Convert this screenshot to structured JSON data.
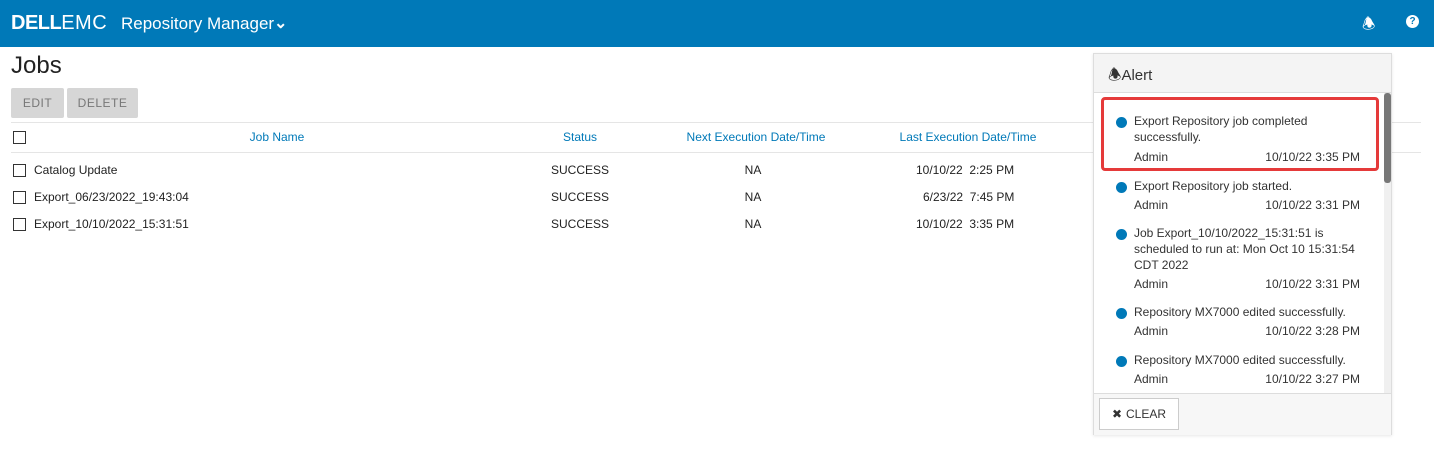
{
  "header": {
    "logo": "DELL EMC",
    "logo_dell": "DELL",
    "logo_emc": "EMC",
    "app_title": "Repository Manager",
    "brand_color": "#0079b8"
  },
  "page": {
    "title": "Jobs",
    "edit_label": "EDIT",
    "delete_label": "DELETE"
  },
  "table": {
    "columns": [
      "Job Name",
      "Status",
      "Next Execution Date/Time",
      "Last Execution Date/Time"
    ],
    "rows": [
      {
        "name": "Catalog Update",
        "status": "SUCCESS",
        "next": "NA",
        "last": "10/10/22  2:25 PM"
      },
      {
        "name": "Export_06/23/2022_19:43:04",
        "status": "SUCCESS",
        "next": "NA",
        "last": "6/23/22  7:45 PM"
      },
      {
        "name": "Export_10/10/2022_15:31:51",
        "status": "SUCCESS",
        "next": "NA",
        "last": "10/10/22  3:35 PM"
      }
    ]
  },
  "alerts": {
    "title": "Alert",
    "clear_label": "CLEAR",
    "items": [
      {
        "message": "Export Repository job completed successfully.",
        "user": "Admin",
        "time": "10/10/22 3:35 PM"
      },
      {
        "message": "Export Repository job started.",
        "user": "Admin",
        "time": "10/10/22 3:31 PM"
      },
      {
        "message": "Job Export_10/10/2022_15:31:51 is scheduled to run at: Mon Oct 10 15:31:54 CDT 2022",
        "user": "Admin",
        "time": "10/10/22 3:31 PM"
      },
      {
        "message": "Repository MX7000 edited successfully.",
        "user": "Admin",
        "time": "10/10/22 3:28 PM"
      },
      {
        "message": "Repository MX7000 edited successfully.",
        "user": "Admin",
        "time": "10/10/22 3:27 PM"
      }
    ]
  }
}
